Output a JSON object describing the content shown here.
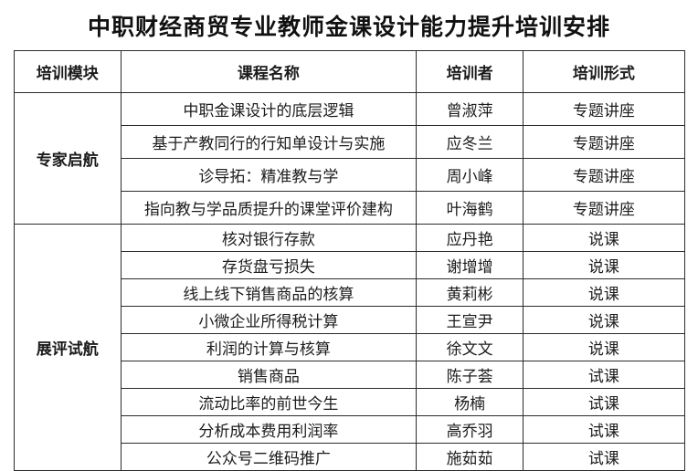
{
  "title": "中职财经商贸专业教师金课设计能力提升培训安排",
  "table": {
    "headers": [
      "培训模块",
      "课程名称",
      "培训者",
      "培训形式"
    ],
    "modules": [
      {
        "name": "专家启航",
        "rows": [
          {
            "course": "中职金课设计的底层逻辑",
            "trainer": "曾淑萍",
            "format": "专题讲座"
          },
          {
            "course": "基于产教同行的行知单设计与实施",
            "trainer": "应冬兰",
            "format": "专题讲座"
          },
          {
            "course": "诊导拓：精准教与学",
            "trainer": "周小峰",
            "format": "专题讲座"
          },
          {
            "course": "指向教与学品质提升的课堂评价建构",
            "trainer": "叶海鹤",
            "format": "专题讲座"
          }
        ]
      },
      {
        "name": "展评试航",
        "rows": [
          {
            "course": "核对银行存款",
            "trainer": "应丹艳",
            "format": "说课"
          },
          {
            "course": "存货盘亏损失",
            "trainer": "谢增增",
            "format": "说课"
          },
          {
            "course": "线上线下销售商品的核算",
            "trainer": "黄莉彬",
            "format": "说课"
          },
          {
            "course": "小微企业所得税计算",
            "trainer": "王宣尹",
            "format": "说课"
          },
          {
            "course": "利润的计算与核算",
            "trainer": "徐文文",
            "format": "说课"
          },
          {
            "course": "销售商品",
            "trainer": "陈子荟",
            "format": "试课"
          },
          {
            "course": "流动比率的前世今生",
            "trainer": "杨楠",
            "format": "试课"
          },
          {
            "course": "分析成本费用利润率",
            "trainer": "高乔羽",
            "format": "试课"
          },
          {
            "course": "公众号二维码推广",
            "trainer": "施茹茹",
            "format": "试课"
          }
        ]
      }
    ]
  },
  "colors": {
    "background": "#ffffff",
    "border": "#2b2b2b",
    "text": "#1c1c1c"
  }
}
